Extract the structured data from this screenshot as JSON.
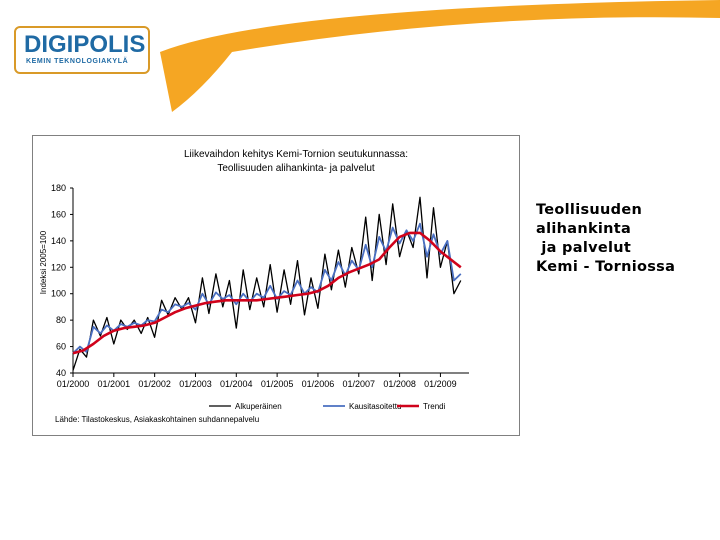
{
  "logo": {
    "main": "DIGIPOLIS",
    "sub": "KEMIN TEKNOLOGIAKYLÄ"
  },
  "side_text": {
    "lines": [
      "Teollisuuden",
      "alihankinta",
      " ja palvelut",
      "Kemi - Torniossa"
    ]
  },
  "colors": {
    "accent": "#f5a623",
    "original": "#000000",
    "seasonal": "#4a6fc1",
    "trend": "#d0021b"
  },
  "chart_data": {
    "type": "line",
    "title": "Liikevaihdon kehitys Kemi-Tornion seutukunnassa:",
    "subtitle": "Teollisuuden alihankinta- ja palvelut",
    "ylabel": "Indeksi 2005=100",
    "xlabel": "",
    "ylim": [
      40,
      180
    ],
    "yticks": [
      40,
      60,
      80,
      100,
      120,
      140,
      160,
      180
    ],
    "xrange": [
      2000,
      2009.7
    ],
    "xticks": [
      {
        "value": 2000,
        "label": "01/2000"
      },
      {
        "value": 2001,
        "label": "01/2001"
      },
      {
        "value": 2002,
        "label": "01/2002"
      },
      {
        "value": 2003,
        "label": "01/2003"
      },
      {
        "value": 2004,
        "label": "01/2004"
      },
      {
        "value": 2005,
        "label": "01/2005"
      },
      {
        "value": 2006,
        "label": "01/2006"
      },
      {
        "value": 2007,
        "label": "01/2007"
      },
      {
        "value": 2008,
        "label": "01/2008"
      },
      {
        "value": 2009,
        "label": "01/2009"
      }
    ],
    "legend_position": "bottom",
    "grid": false,
    "source": "Lähde: Tilastokeskus, Asiakaskohtainen suhdannepalvelu",
    "series": [
      {
        "name": "Alkuperäinen",
        "color": "#000000",
        "x": [
          2000.0,
          2000.17,
          2000.33,
          2000.5,
          2000.67,
          2000.83,
          2001.0,
          2001.17,
          2001.33,
          2001.5,
          2001.67,
          2001.83,
          2002.0,
          2002.17,
          2002.33,
          2002.5,
          2002.67,
          2002.83,
          2003.0,
          2003.17,
          2003.33,
          2003.5,
          2003.67,
          2003.83,
          2004.0,
          2004.17,
          2004.33,
          2004.5,
          2004.67,
          2004.83,
          2005.0,
          2005.17,
          2005.33,
          2005.5,
          2005.67,
          2005.83,
          2006.0,
          2006.17,
          2006.33,
          2006.5,
          2006.67,
          2006.83,
          2007.0,
          2007.17,
          2007.33,
          2007.5,
          2007.67,
          2007.83,
          2008.0,
          2008.17,
          2008.33,
          2008.5,
          2008.67,
          2008.83,
          2009.0,
          2009.17,
          2009.33,
          2009.5
        ],
        "values": [
          42,
          58,
          52,
          80,
          68,
          82,
          62,
          80,
          73,
          80,
          70,
          82,
          67,
          95,
          84,
          97,
          88,
          97,
          78,
          112,
          85,
          115,
          90,
          110,
          74,
          118,
          88,
          112,
          90,
          122,
          86,
          118,
          92,
          125,
          84,
          112,
          89,
          130,
          103,
          133,
          105,
          135,
          115,
          158,
          110,
          160,
          122,
          168,
          128,
          148,
          135,
          173,
          112,
          165,
          120,
          140,
          100,
          110
        ]
      },
      {
        "name": "Kausitasoitettu",
        "color": "#4a6fc1",
        "x": [
          2000.0,
          2000.17,
          2000.33,
          2000.5,
          2000.67,
          2000.83,
          2001.0,
          2001.17,
          2001.33,
          2001.5,
          2001.67,
          2001.83,
          2002.0,
          2002.17,
          2002.33,
          2002.5,
          2002.67,
          2002.83,
          2003.0,
          2003.17,
          2003.33,
          2003.5,
          2003.67,
          2003.83,
          2004.0,
          2004.17,
          2004.33,
          2004.5,
          2004.67,
          2004.83,
          2005.0,
          2005.17,
          2005.33,
          2005.5,
          2005.67,
          2005.83,
          2006.0,
          2006.17,
          2006.33,
          2006.5,
          2006.67,
          2006.83,
          2007.0,
          2007.17,
          2007.33,
          2007.5,
          2007.67,
          2007.83,
          2008.0,
          2008.17,
          2008.33,
          2008.5,
          2008.67,
          2008.83,
          2009.0,
          2009.17,
          2009.33,
          2009.5
        ],
        "values": [
          55,
          60,
          56,
          75,
          70,
          76,
          72,
          77,
          75,
          78,
          76,
          80,
          79,
          88,
          86,
          92,
          90,
          93,
          88,
          100,
          92,
          101,
          96,
          99,
          92,
          100,
          94,
          100,
          97,
          106,
          96,
          102,
          99,
          110,
          100,
          105,
          101,
          118,
          110,
          124,
          114,
          125,
          118,
          137,
          120,
          143,
          132,
          150,
          138,
          148,
          140,
          153,
          128,
          145,
          130,
          140,
          110,
          115
        ]
      },
      {
        "name": "Trendi",
        "color": "#d0021b",
        "x": [
          2000.0,
          2000.25,
          2000.5,
          2000.75,
          2001.0,
          2001.25,
          2001.5,
          2001.75,
          2002.0,
          2002.25,
          2002.5,
          2002.75,
          2003.0,
          2003.25,
          2003.5,
          2003.75,
          2004.0,
          2004.25,
          2004.5,
          2004.75,
          2005.0,
          2005.25,
          2005.5,
          2005.75,
          2006.0,
          2006.25,
          2006.5,
          2006.75,
          2007.0,
          2007.25,
          2007.5,
          2007.75,
          2008.0,
          2008.25,
          2008.5,
          2008.75,
          2009.0,
          2009.25,
          2009.5
        ],
        "values": [
          55,
          57,
          62,
          68,
          72,
          74,
          75,
          76,
          78,
          82,
          86,
          89,
          91,
          93,
          94,
          95,
          95,
          95,
          95,
          96,
          97,
          98,
          99,
          100,
          102,
          106,
          112,
          116,
          119,
          122,
          126,
          135,
          143,
          146,
          146,
          140,
          132,
          126,
          120
        ]
      }
    ]
  }
}
